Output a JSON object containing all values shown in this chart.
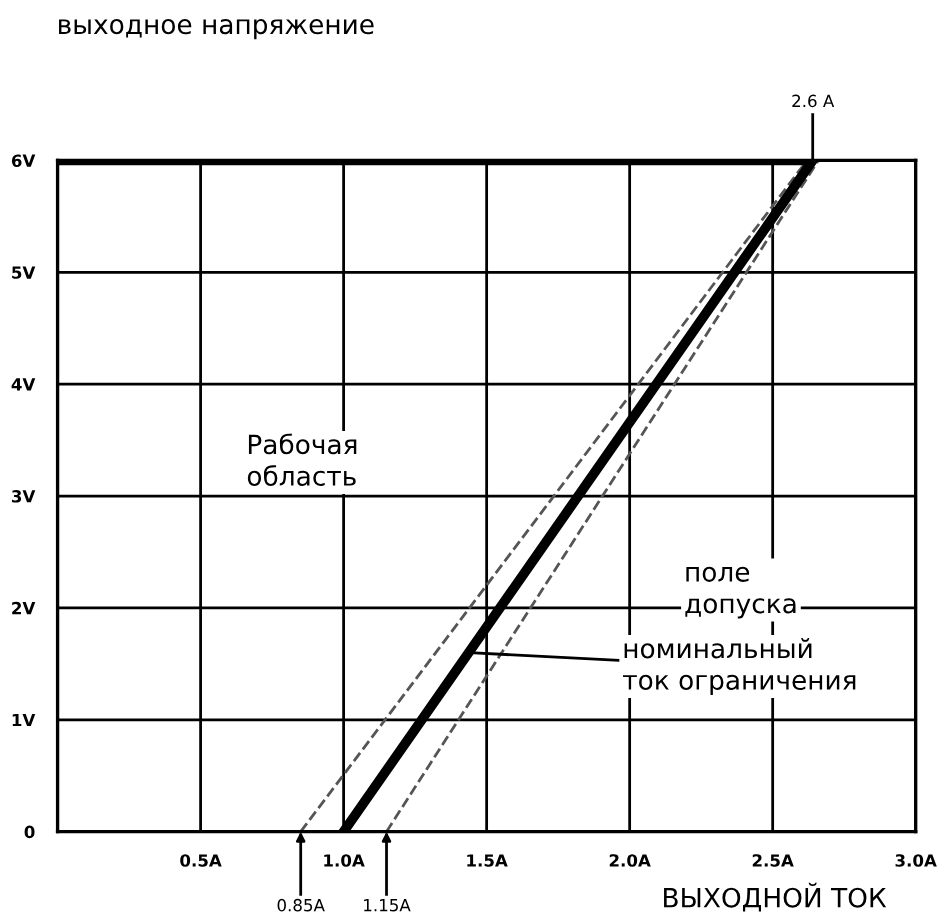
{
  "chart_data": {
    "type": "line",
    "xlabel": "ВЫХОДНОЙ ТОК",
    "ylabel": "выходное напряжение",
    "series": [
      {
        "color": "#000000",
        "x": [
          0,
          2.64,
          1.0
        ],
        "values": [
          6,
          6,
          0
        ],
        "line_style": "solid"
      },
      {
        "color": "#555555",
        "x": [
          0.85,
          2.62
        ],
        "values": [
          0,
          6
        ],
        "line_style": "dashed"
      },
      {
        "color": "#555555",
        "x": [
          1.15,
          2.66
        ],
        "values": [
          0,
          6
        ],
        "line_style": "dashed"
      }
    ],
    "xlim": [
      0,
      3.0
    ],
    "ylim": [
      0,
      6
    ],
    "xticks": [
      {
        "value": 0,
        "label": null
      },
      {
        "value": 0.5,
        "label": "0.5A"
      },
      {
        "value": 1.0,
        "label": "1.0A"
      },
      {
        "value": 1.5,
        "label": "1.5A"
      },
      {
        "value": 2.0,
        "label": "2.0A"
      },
      {
        "value": 2.5,
        "label": "2.5A"
      },
      {
        "value": 3.0,
        "label": "3.0A"
      }
    ],
    "yticks": [
      0,
      {
        "value": 1,
        "label": "1V"
      },
      {
        "value": 2,
        "label": "2V"
      },
      {
        "value": 3,
        "label": "3V"
      },
      {
        "value": 4,
        "label": "4V"
      },
      {
        "value": 5,
        "label": "5V"
      },
      {
        "value": 6,
        "label": "6V"
      }
    ],
    "grid": true,
    "legend": false,
    "marker": "none",
    "annotations": [
      {
        "text": "2.6 A",
        "x": 2.64,
        "y": 6
      },
      {
        "text": "0.85A",
        "x": 0.85,
        "y": 0
      },
      {
        "text": "1.15A",
        "x": 1.15,
        "y": 0
      },
      "поле\nдопуска",
      {
        "text": "номинальный\nток ограничения",
        "x": 1.44,
        "y": 1.6
      },
      "Рабочая\nобласть"
    ]
  }
}
